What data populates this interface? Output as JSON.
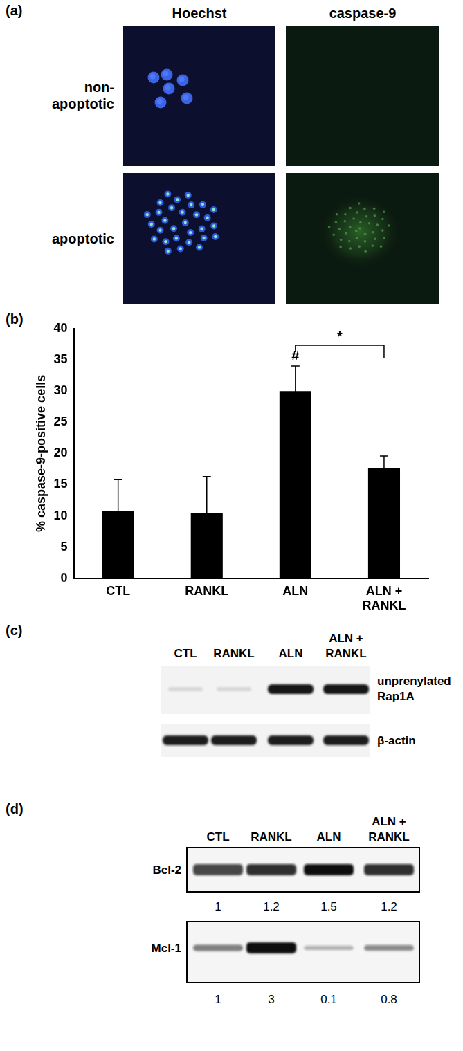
{
  "panels": {
    "a": {
      "label": "(a)",
      "columns": [
        "Hoechst",
        "caspase-9"
      ],
      "rows": [
        [
          "non-",
          "apoptotic"
        ],
        "apoptotic"
      ]
    },
    "b": {
      "label": "(b)"
    },
    "c": {
      "label": "(c)",
      "lanes": [
        "CTL",
        "RANKL",
        "ALN",
        [
          "ALN +",
          "RANKL"
        ]
      ],
      "blots": [
        [
          "unprenylated",
          "Rap1A"
        ],
        "β-actin"
      ]
    },
    "d": {
      "label": "(d)",
      "lanes": [
        "CTL",
        "RANKL",
        "ALN",
        [
          "ALN +",
          "RANKL"
        ]
      ],
      "blots": [
        {
          "name": "Bcl-2",
          "values": [
            1,
            1.2,
            1.5,
            1.2
          ]
        },
        {
          "name": "Mcl-1",
          "values": [
            1,
            3,
            0.1,
            0.8
          ]
        }
      ]
    }
  },
  "chart_data": {
    "type": "bar",
    "categories": [
      "CTL",
      "RANKL",
      "ALN",
      [
        "ALN +",
        "RANKL"
      ]
    ],
    "values": [
      10.8,
      10.5,
      30,
      17.6
    ],
    "errors": [
      5,
      5.8,
      4,
      2
    ],
    "color": "#000000",
    "y_label": "% caspase-9-positive cells",
    "ylim": [
      0,
      40
    ],
    "yticks": [
      0,
      5,
      10,
      15,
      20,
      25,
      30,
      35,
      40
    ],
    "grid": false,
    "annotations": [
      {
        "text": "#",
        "category": "ALN"
      },
      {
        "text": "*",
        "from": "ALN",
        "to": [
          "ALN +",
          "RANKL"
        ]
      }
    ]
  }
}
